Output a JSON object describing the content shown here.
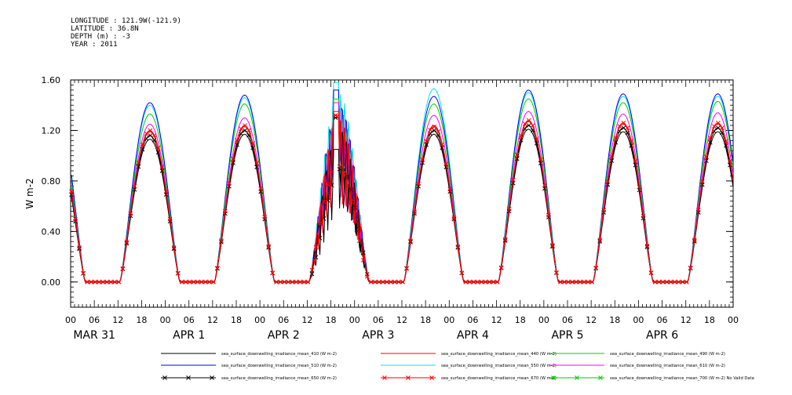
{
  "header": {
    "longitude": "LONGITUDE : 121.9W(-121.9)",
    "latitude": "LATITUDE : 36.8N",
    "depth": "DEPTH (m) : -3",
    "year": "YEAR : 2011"
  },
  "chart_data": {
    "type": "line",
    "ylabel": "W m-2",
    "ylim": [
      -0.2,
      1.6
    ],
    "yticks": [
      0.0,
      0.4,
      0.8,
      1.2,
      1.6
    ],
    "ytick_labels": [
      "0.00",
      "0.40",
      "0.80",
      "1.20",
      "1.60"
    ],
    "xlim_hours": [
      0,
      168
    ],
    "x_hour_tick_labels": [
      "00",
      "06",
      "12",
      "18",
      "00",
      "06",
      "12",
      "18",
      "00",
      "06",
      "12",
      "18",
      "00",
      "06",
      "12",
      "18",
      "00",
      "06",
      "12",
      "18",
      "00",
      "06",
      "12",
      "18",
      "00",
      "06",
      "12",
      "18",
      "00"
    ],
    "x_day_labels": [
      "MAR 31",
      "APR 1",
      "APR 2",
      "APR 3",
      "APR 4",
      "APR 5",
      "APR 6"
    ],
    "daily_peaks_note": "peak values per day (Mar 31 .. Apr 6) for each series",
    "series": [
      {
        "name": "sea_surface_downwelling_irradiance_mean_410 (W m-2)",
        "color": "#000000",
        "marker": "none",
        "daily_peak": [
          1.13,
          1.17,
          1.05,
          1.17,
          1.21,
          1.19,
          1.19
        ]
      },
      {
        "name": "sea_surface_downwelling_irradiance_mean_440 (W m-2)",
        "color": "#ff0000",
        "marker": "none",
        "daily_peak": [
          1.19,
          1.23,
          1.35,
          1.24,
          1.27,
          1.25,
          1.25
        ]
      },
      {
        "name": "sea_surface_downwelling_irradiance_mean_490 (W m-2)",
        "color": "#00cc00",
        "marker": "none",
        "daily_peak": [
          1.33,
          1.41,
          1.45,
          1.41,
          1.45,
          1.42,
          1.43
        ]
      },
      {
        "name": "sea_surface_downwelling_irradiance_mean_510 (W m-2)",
        "color": "#0000ff",
        "marker": "none",
        "daily_peak": [
          1.42,
          1.48,
          1.52,
          1.47,
          1.52,
          1.49,
          1.49
        ]
      },
      {
        "name": "sea_surface_downwelling_irradiance_mean_550 (W m-2)",
        "color": "#00e5e5",
        "marker": "none",
        "daily_peak": [
          1.4,
          1.46,
          1.58,
          1.53,
          1.5,
          1.47,
          1.47
        ]
      },
      {
        "name": "sea_surface_downwelling_irradiance_mean_610 (W m-2)",
        "color": "#ff00ff",
        "marker": "none",
        "daily_peak": [
          1.25,
          1.3,
          1.42,
          1.32,
          1.35,
          1.33,
          1.34
        ]
      },
      {
        "name": "sea_surface_downwelling_irradiance_mean_650 (W m-2)",
        "color": "#000000",
        "marker": "x",
        "daily_peak": [
          1.16,
          1.2,
          1.3,
          1.2,
          1.24,
          1.22,
          1.22
        ]
      },
      {
        "name": "sea_surface_downwelling_irradiance_mean_670 (W m-2)",
        "color": "#ff0000",
        "marker": "x",
        "daily_peak": [
          1.2,
          1.24,
          1.32,
          1.23,
          1.28,
          1.26,
          1.26
        ]
      },
      {
        "name": "sea_surface_downwelling_irradiance_mean_700 (W m-2) No Valid Data",
        "color": "#00cc00",
        "marker": "x",
        "daily_peak": []
      }
    ]
  }
}
